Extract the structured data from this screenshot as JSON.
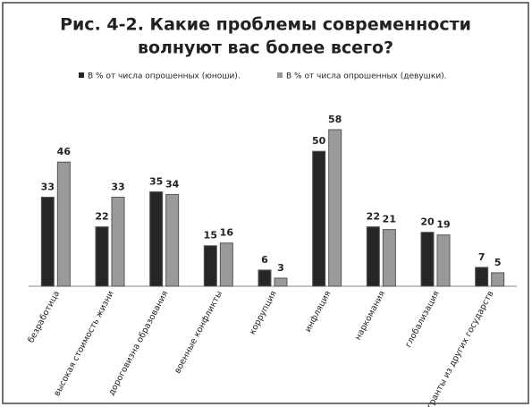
{
  "chart_data": {
    "type": "bar",
    "title": [
      "Рис. 4-2. Какие проблемы современности",
      "волнуют вас более всего?"
    ],
    "categories": [
      "безработица",
      "высокая стоимость жизни",
      "дороговизна образования",
      "военные конфликты",
      "коррупция",
      "инфляция",
      "наркомания",
      "глобализация",
      "мигранты из других государств"
    ],
    "series": [
      {
        "name": "В % от числа опрошенных (юноши).",
        "color": "#262626",
        "values": [
          33,
          22,
          35,
          15,
          6,
          50,
          22,
          20,
          7
        ]
      },
      {
        "name": "В % от числа опрошенных (девушки).",
        "color": "#9a9a9a",
        "values": [
          46,
          33,
          34,
          16,
          3,
          58,
          21,
          19,
          5
        ]
      }
    ]
  }
}
